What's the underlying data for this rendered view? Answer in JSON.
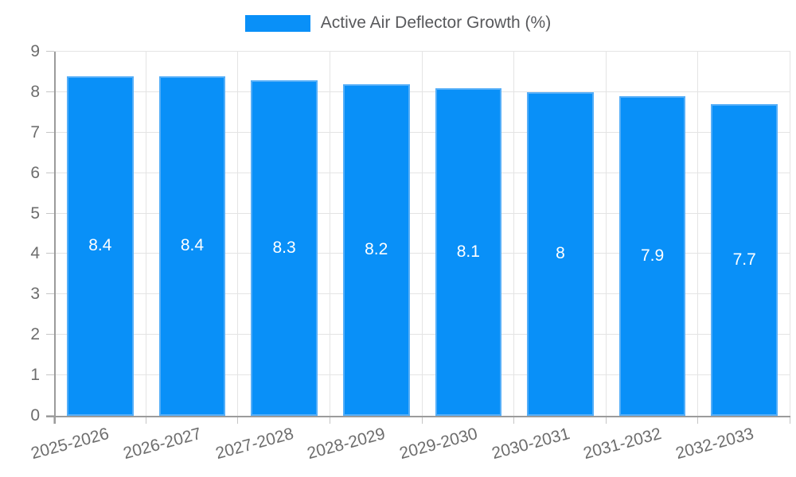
{
  "chart_data": {
    "type": "bar",
    "title": "",
    "legend": "Active Air Deflector Growth (%)",
    "legend_position": "top",
    "categories": [
      "2025-2026",
      "2026-2027",
      "2027-2028",
      "2028-2029",
      "2029-2030",
      "2030-2031",
      "2031-2032",
      "2032-2033"
    ],
    "values": [
      8.4,
      8.4,
      8.3,
      8.2,
      8.1,
      8,
      7.9,
      7.7
    ],
    "value_labels": [
      "8.4",
      "8.4",
      "8.3",
      "8.2",
      "8.1",
      "8",
      "7.9",
      "7.7"
    ],
    "xlabel": "",
    "ylabel": "",
    "ylim": [
      0,
      9
    ],
    "y_ticks": [
      0,
      1,
      2,
      3,
      4,
      5,
      6,
      7,
      8,
      9
    ],
    "grid": true,
    "bar_color": "#0990f8",
    "bar_border_color": "#54aef8",
    "value_text_color": "#ffffff",
    "grid_color": "#e4e4e4",
    "axis_color": "#9b9b9b",
    "tick_color": "#c6c6c6",
    "tick_label_color": "#6d6d6d",
    "legend_text_color": "#58595c"
  }
}
